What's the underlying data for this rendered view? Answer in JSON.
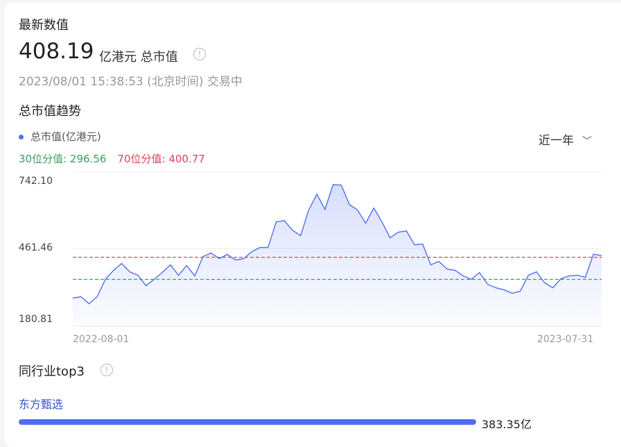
{
  "header": {
    "title": "最新数值",
    "value": "408.19",
    "unit": "亿港元 总市值",
    "info_icon": "info-circle-icon",
    "timestamp": "2023/08/01 15:38:53",
    "timezone": "(北京时间)",
    "status": "交易中"
  },
  "trend": {
    "title": "总市值趋势",
    "legend": "总市值(亿港元)",
    "p30_label": "30位分值: 296.56",
    "p70_label": "70位分值: 400.77",
    "range_select": "近一年",
    "colors": {
      "line": "#4e6ef2",
      "p30": "#3a9e5c",
      "p70": "#e0405a"
    }
  },
  "chart_data": {
    "type": "area",
    "ylim": [
      180.81,
      742.1
    ],
    "y_ticks": [
      "742.10",
      "461.46",
      "180.81"
    ],
    "x_ticks": [
      "2022-08-01",
      "2023-07-31"
    ],
    "reference_lines": [
      {
        "label": "30位分值",
        "value": 296.56
      },
      {
        "label": "70位分值",
        "value": 400.77
      }
    ],
    "values": [
      208.4,
      215,
      182.3,
      215,
      296.5,
      338.8,
      371.4,
      332.3,
      316,
      267.1,
      296.5,
      329,
      364.9,
      316,
      361.7,
      312.8,
      404,
      420.3,
      394.3,
      413.8,
      387.7,
      394.3,
      426.9,
      446.4,
      446.4,
      567,
      573.5,
      528,
      501.8,
      622.5,
      697.4,
      625.7,
      742.1,
      739.8,
      648.5,
      622.5,
      560.5,
      632.2,
      567,
      492,
      518.1,
      524.6,
      459.5,
      462.7,
      364.9,
      381.2,
      345.3,
      338.8,
      312.8,
      296.5,
      329,
      273.6,
      257.3,
      247.5,
      231.3,
      241,
      316,
      332.3,
      280.2,
      257.3,
      299.7,
      312.8,
      316,
      306.2,
      415,
      408.19
    ]
  },
  "peers": {
    "title": "同行业top3",
    "items": [
      {
        "name": "东方甄选",
        "value": "383.35亿",
        "fraction": 1.0
      }
    ]
  }
}
